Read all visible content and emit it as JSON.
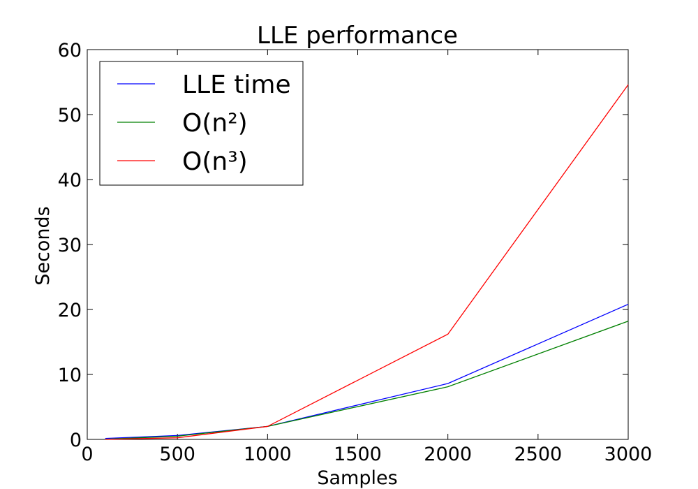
{
  "chart_data": {
    "type": "line",
    "title": "LLE performance",
    "xlabel": "Samples",
    "ylabel": "Seconds",
    "xlim": [
      0,
      3000
    ],
    "ylim": [
      0,
      60
    ],
    "xticks": [
      0,
      500,
      1000,
      1500,
      2000,
      2500,
      3000
    ],
    "yticks": [
      0,
      10,
      20,
      30,
      40,
      50,
      60
    ],
    "grid": false,
    "legend_position": "top-left",
    "series": [
      {
        "name": "LLE time",
        "color": "#0000ff",
        "x": [
          100,
          500,
          1000,
          2000,
          3000
        ],
        "y": [
          0.15,
          0.6,
          2.0,
          8.6,
          20.8
        ]
      },
      {
        "name": "O(n²)",
        "color": "#008000",
        "x": [
          100,
          500,
          1000,
          2000,
          3000
        ],
        "y": [
          0.02,
          0.5,
          2.0,
          8.1,
          18.2
        ]
      },
      {
        "name": "O(n³)",
        "color": "#ff0000",
        "x": [
          100,
          500,
          1000,
          2000,
          3000
        ],
        "y": [
          0.0,
          0.25,
          2.0,
          16.2,
          54.6
        ]
      }
    ]
  }
}
